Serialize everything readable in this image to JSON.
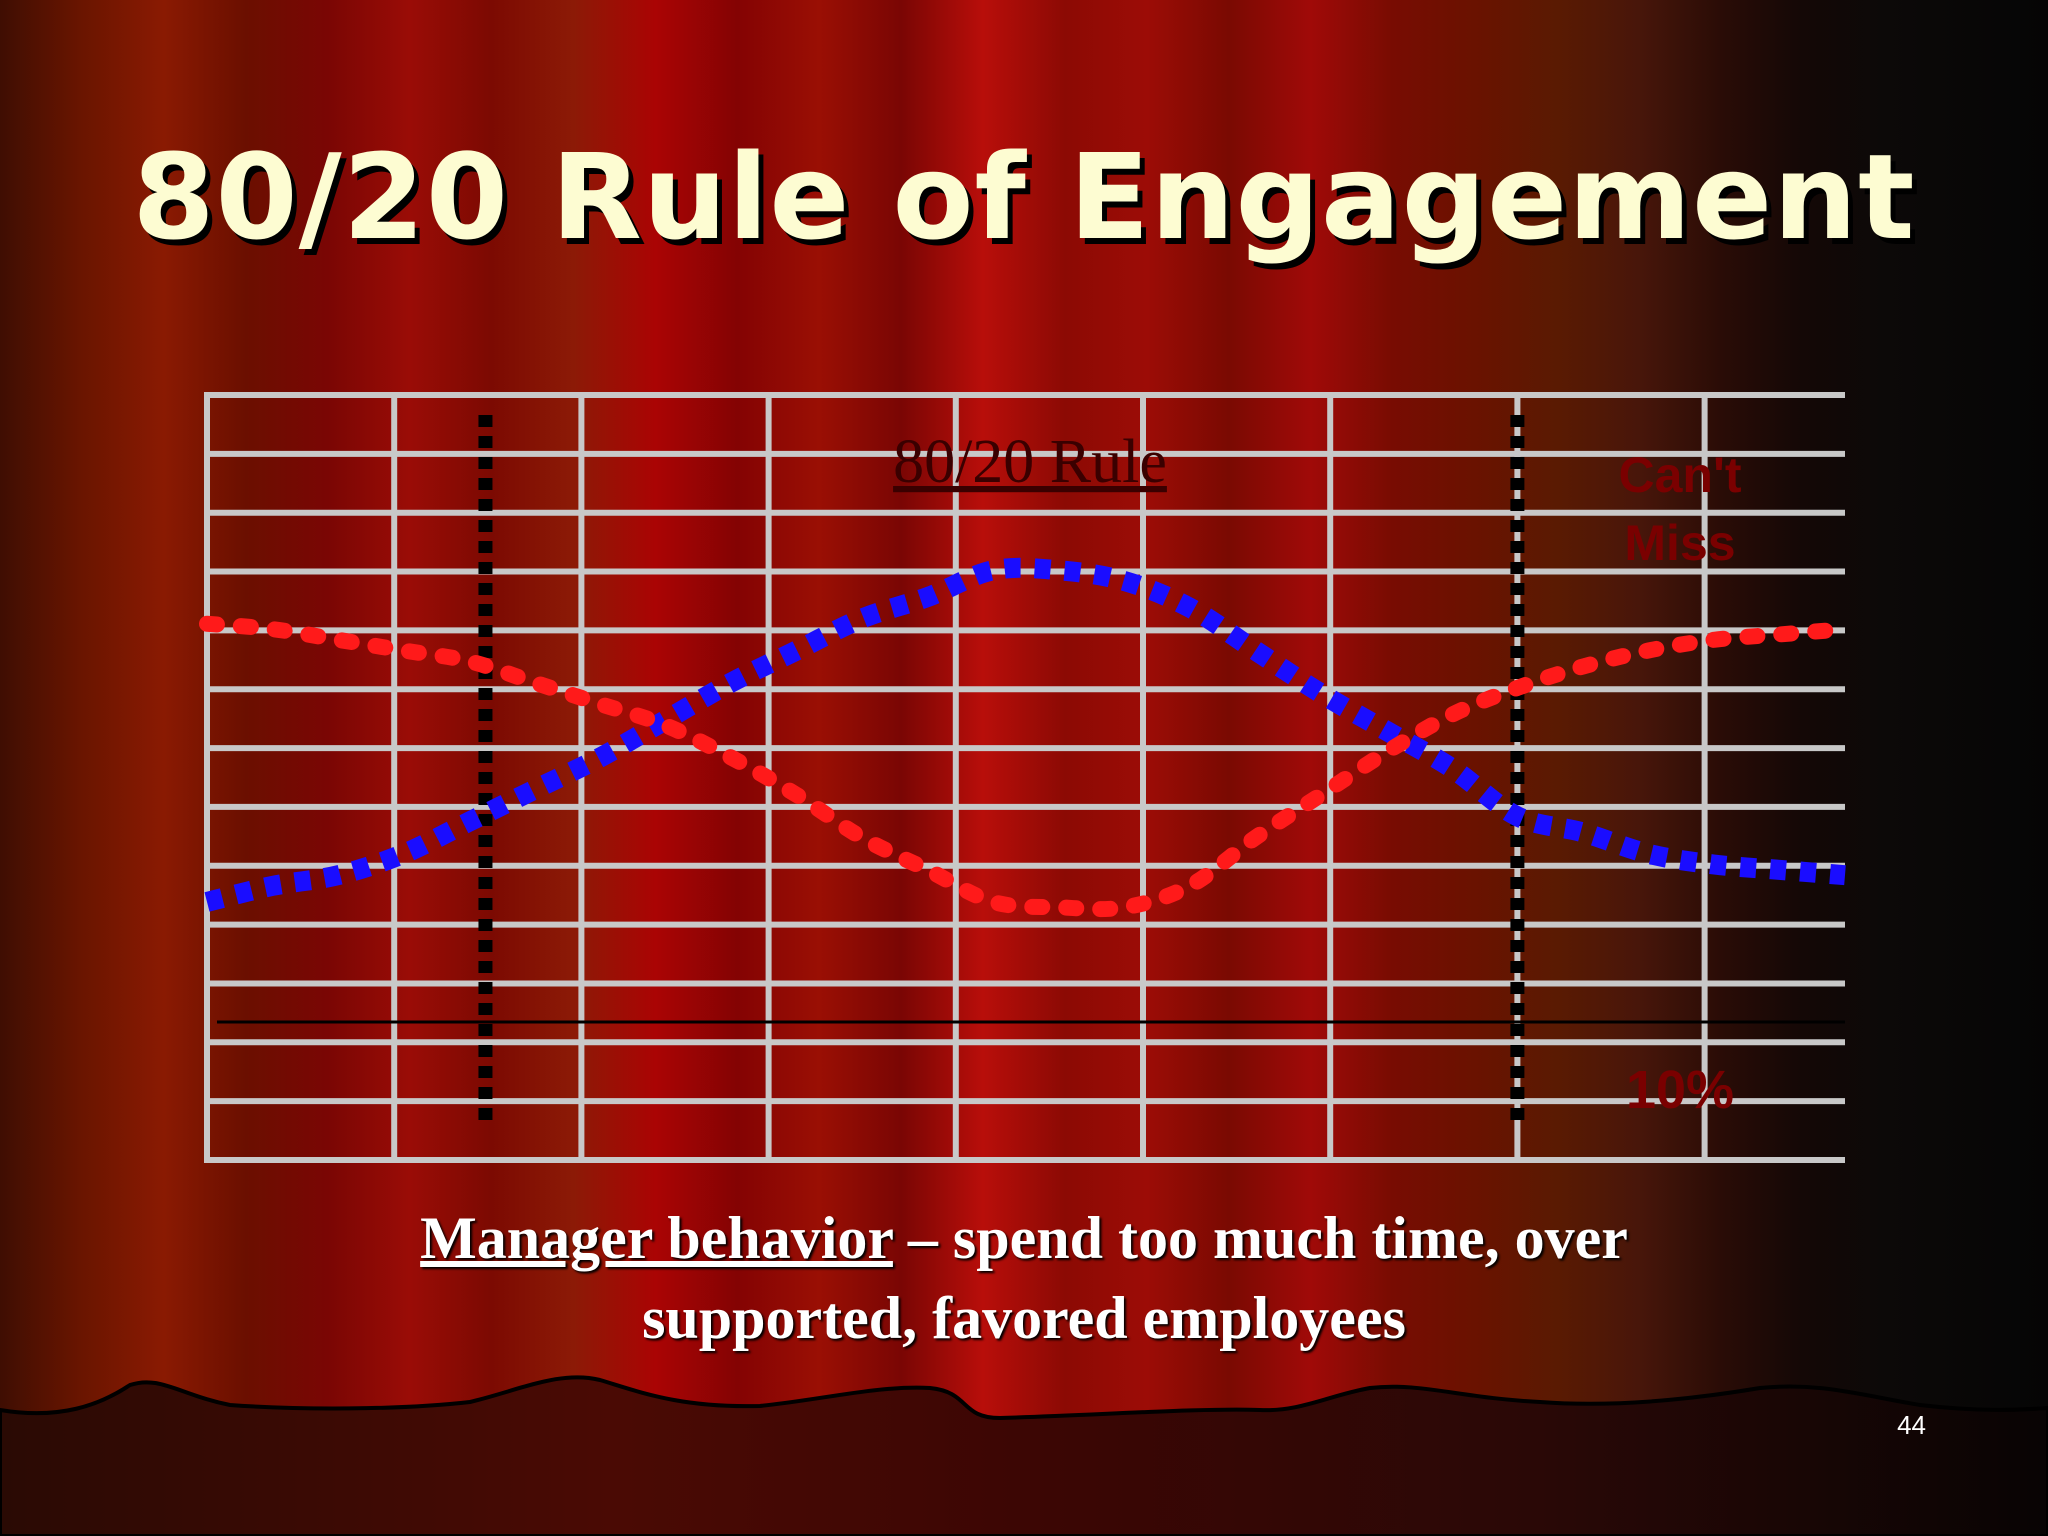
{
  "slide": {
    "title": "80/20 Rule of Engagement",
    "caption_underlined": "Manager behavior",
    "caption_rest_line1": " – spend too much time, over",
    "caption_line2": "supported, favored employees",
    "slide_number": "44"
  },
  "colors": {
    "title": "#fdfcd2",
    "grid": "#c8c8c8",
    "series_blue": "#1a0dff",
    "series_red": "#ff1a1a",
    "label_dark_red": "#7a0000"
  },
  "chart_data": {
    "type": "line",
    "title": "80/20 Rule",
    "annotations": [
      {
        "text": "Can't",
        "anchor": "top-right"
      },
      {
        "text": "Miss",
        "anchor": "top-right"
      },
      {
        "text": "10%",
        "anchor": "bottom-right"
      }
    ],
    "grid": true,
    "grid_columns": 9,
    "grid_rows": 13,
    "xlim": [
      0,
      100
    ],
    "ylim": [
      0,
      100
    ],
    "divider_x": [
      17,
      80
    ],
    "baseline_y": 18,
    "series": [
      {
        "color": "#1a0dff",
        "style": "dotted",
        "x": [
          0,
          4,
          8,
          12,
          16,
          20,
          24,
          28,
          32,
          36,
          40,
          44,
          48,
          52,
          56,
          60,
          64,
          68,
          72,
          76,
          80,
          84,
          88,
          92,
          96,
          100
        ],
        "y": [
          23,
          26,
          28,
          32,
          38,
          44,
          50,
          57,
          64,
          70,
          76,
          80,
          85,
          85,
          83,
          78,
          70,
          62,
          55,
          48,
          39,
          36,
          32,
          30,
          29,
          28
        ]
      },
      {
        "color": "#ff1a1a",
        "style": "dotted",
        "x": [
          0,
          4,
          8,
          12,
          16,
          20,
          24,
          28,
          32,
          36,
          40,
          44,
          48,
          52,
          56,
          60,
          64,
          68,
          72,
          76,
          80,
          84,
          88,
          92,
          96,
          100
        ],
        "y": [
          75,
          74,
          72,
          70,
          68,
          64,
          60,
          56,
          50,
          43,
          35,
          29,
          23,
          22,
          22,
          26,
          35,
          43,
          51,
          58,
          63,
          67,
          70,
          72,
          73,
          74
        ]
      }
    ]
  }
}
